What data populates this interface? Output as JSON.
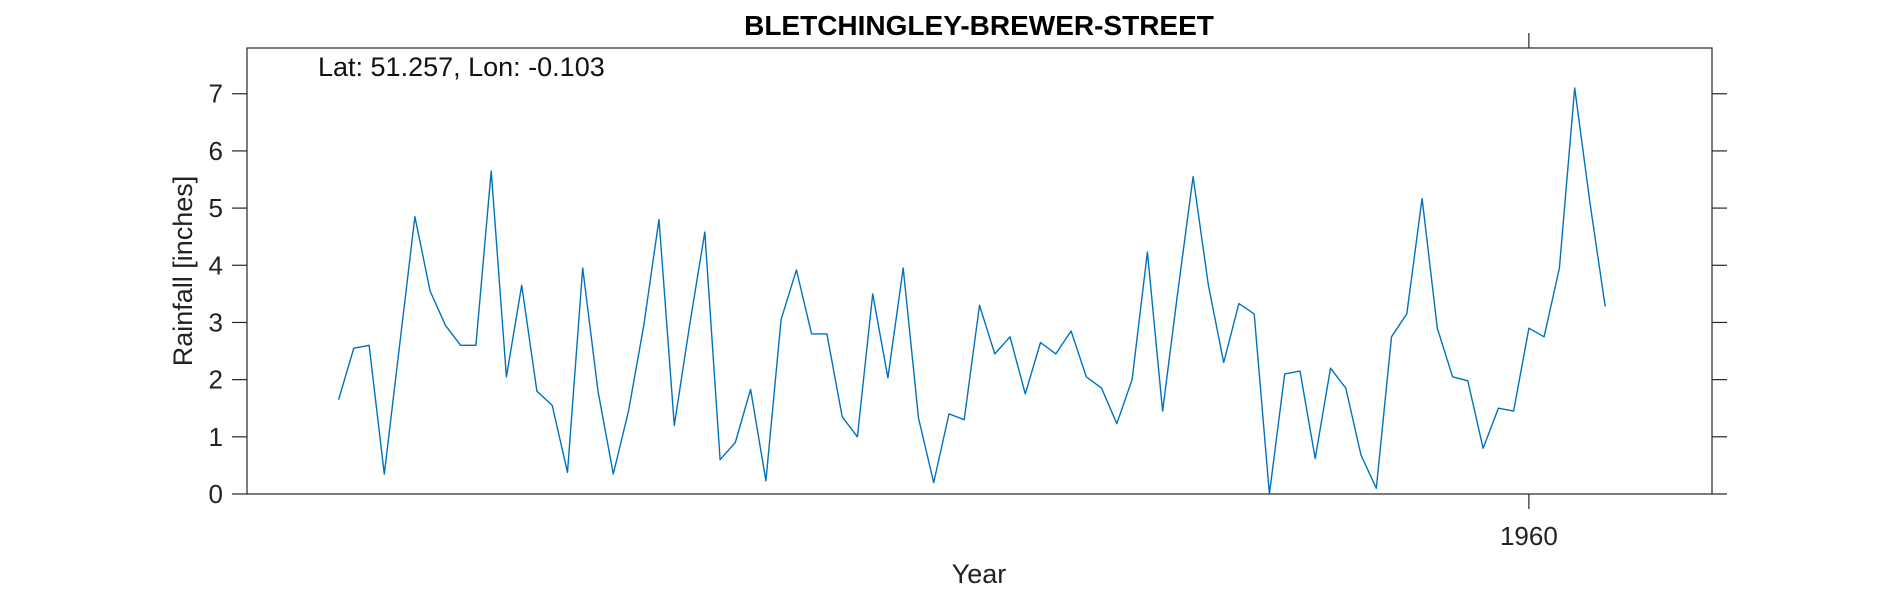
{
  "chart_data": {
    "type": "line",
    "title": "BLETCHINGLEY-BREWER-STREET",
    "xlabel": "Year",
    "ylabel": "Rainfall [inches]",
    "annotation": "Lat: 51.257, Lon: -0.103",
    "xlim": [
      1876,
      1972
    ],
    "ylim": [
      0,
      7.8
    ],
    "yticks": [
      "0",
      "1",
      "2",
      "3",
      "4",
      "5",
      "6",
      "7"
    ],
    "xticks": [
      "1960"
    ],
    "grid": false,
    "legend": "none",
    "series": [
      {
        "color": "#0072bd",
        "x": [
          1882,
          1883,
          1884,
          1885,
          1886,
          1887,
          1888,
          1889,
          1890,
          1891,
          1892,
          1893,
          1894,
          1895,
          1896,
          1897,
          1898,
          1899,
          1900,
          1901,
          1902,
          1903,
          1904,
          1905,
          1906,
          1907,
          1908,
          1909,
          1910,
          1911,
          1912,
          1913,
          1914,
          1915,
          1916,
          1917,
          1918,
          1919,
          1920,
          1921,
          1922,
          1923,
          1924,
          1925,
          1926,
          1927,
          1928,
          1929,
          1930,
          1931,
          1932,
          1933,
          1934,
          1935,
          1936,
          1937,
          1938,
          1939,
          1940,
          1941,
          1942,
          1943,
          1944,
          1945,
          1946,
          1947,
          1948,
          1949,
          1950,
          1951,
          1952,
          1953,
          1954,
          1955,
          1956,
          1957,
          1958,
          1959,
          1960,
          1961,
          1962,
          1963,
          1964,
          1965
        ],
        "y": [
          1.65,
          2.55,
          2.6,
          0.35,
          2.6,
          4.85,
          3.55,
          2.95,
          2.6,
          2.6,
          5.65,
          2.05,
          3.65,
          1.8,
          1.55,
          0.38,
          3.95,
          1.8,
          0.35,
          1.45,
          2.95,
          4.8,
          1.2,
          2.95,
          4.58,
          0.6,
          0.9,
          1.83,
          0.23,
          3.05,
          3.92,
          2.8,
          2.8,
          1.35,
          1.0,
          3.5,
          2.03,
          3.95,
          1.33,
          0.2,
          1.4,
          1.3,
          3.3,
          2.45,
          2.75,
          1.75,
          2.65,
          2.45,
          2.85,
          2.05,
          1.85,
          1.23,
          2.0,
          4.23,
          1.45,
          3.55,
          5.55,
          3.65,
          2.3,
          3.33,
          3.15,
          0.0,
          2.1,
          2.15,
          0.62,
          2.2,
          1.85,
          0.68,
          0.1,
          2.75,
          3.15,
          5.17,
          2.9,
          2.05,
          1.98,
          0.8,
          1.5,
          1.45,
          2.9,
          2.75,
          3.95,
          7.1,
          5.1,
          3.28
        ]
      }
    ]
  }
}
